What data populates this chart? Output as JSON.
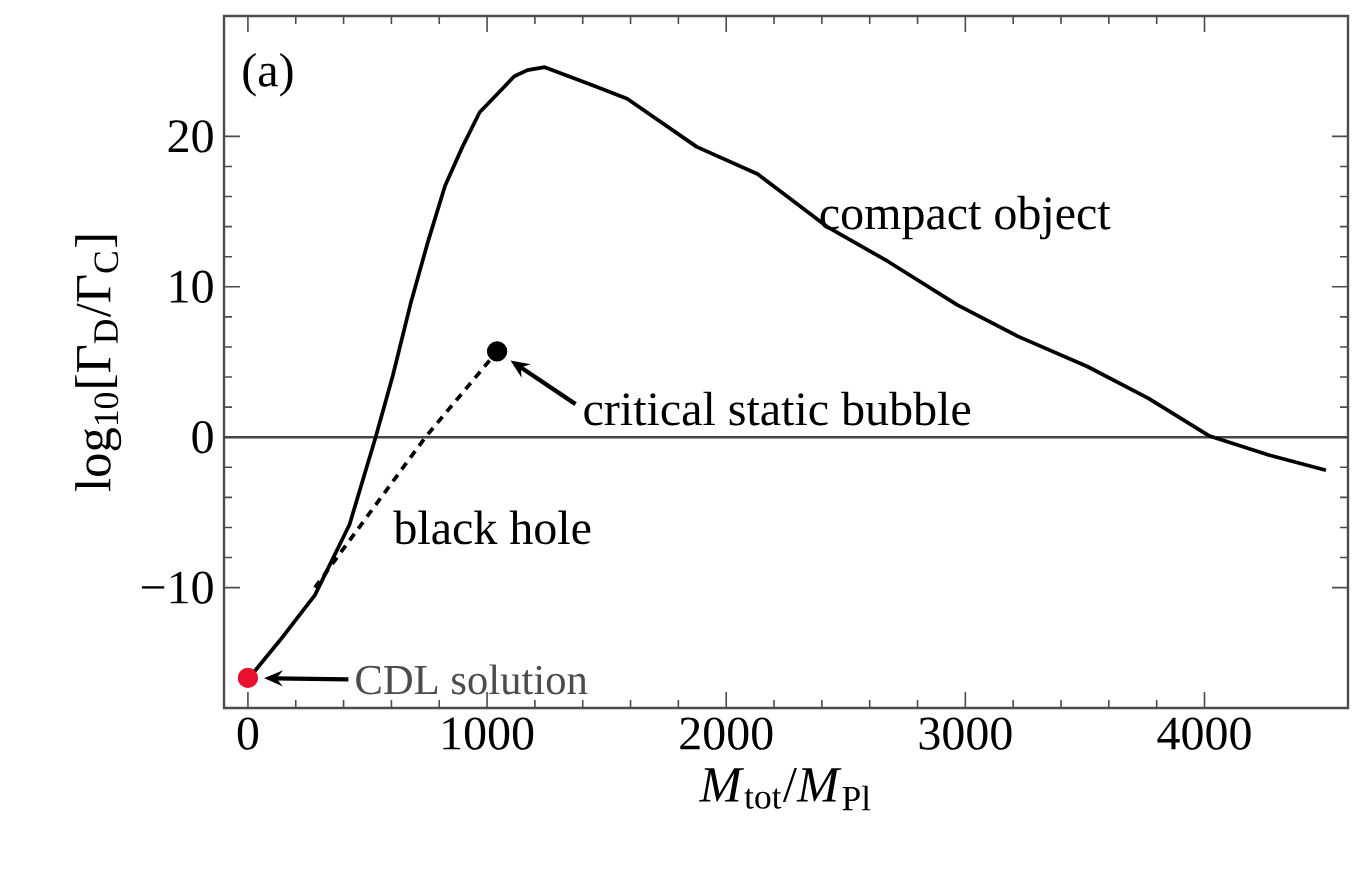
{
  "chart_data": {
    "type": "line",
    "xlabel": "*M*$_{tot}$/*M*$_{Pl}$",
    "ylabel": "log$_{10}$[Γ$_{D}$/Γ$_{C}$]",
    "xlim": [
      -100,
      4600
    ],
    "ylim": [
      -18,
      28
    ],
    "xticks": [
      0,
      1000,
      2000,
      3000,
      4000
    ],
    "yticks": [
      {
        "value": -10,
        "label": "−10"
      },
      0,
      10,
      20
    ],
    "grid": false,
    "series": [
      {
        "type": "line",
        "color": "#000000",
        "line_style": "solid",
        "marker": "none",
        "x": [
          0,
          134,
          280,
          425,
          534,
          606,
          679,
          751,
          824,
          897,
          969,
          1042,
          1114,
          1169,
          1241,
          1441,
          1586,
          1877,
          2131,
          2421,
          2675,
          2966,
          3220,
          3510,
          3764,
          4018,
          4272,
          4508
        ],
        "values": [
          -16.1,
          -13.5,
          -10.5,
          -5.8,
          0,
          4.1,
          8.8,
          12.9,
          16.7,
          19.3,
          21.6,
          22.8,
          24,
          24.4,
          24.6,
          23.4,
          22.5,
          19.3,
          17.5,
          14,
          11.7,
          8.8,
          6.7,
          4.7,
          2.6,
          0.1,
          -1.2,
          -2.2
        ]
      },
      {
        "type": "line",
        "color": "#000000",
        "line_style": "dashed",
        "marker": "none",
        "x": [
          280,
          742,
          1042
        ],
        "values": [
          -10,
          0,
          5.7
        ]
      },
      {
        "type": "scatter",
        "color": "#000000",
        "marker": "circle",
        "x": [
          1042
        ],
        "values": [
          5.7
        ]
      },
      {
        "type": "scatter",
        "color": "#e8102e",
        "marker": "circle",
        "x": [
          0
        ],
        "values": [
          -16
        ]
      }
    ],
    "ref_lines": [
      {
        "axis": "y",
        "value": 0,
        "color": "#444444"
      }
    ],
    "annotations": [
      "(a)",
      "compact object",
      {
        "text": "critical static bubble",
        "x": 1042,
        "y": 5.7
      },
      "black hole",
      {
        "text": "CDL solution",
        "x": 0,
        "y": -16
      }
    ]
  }
}
